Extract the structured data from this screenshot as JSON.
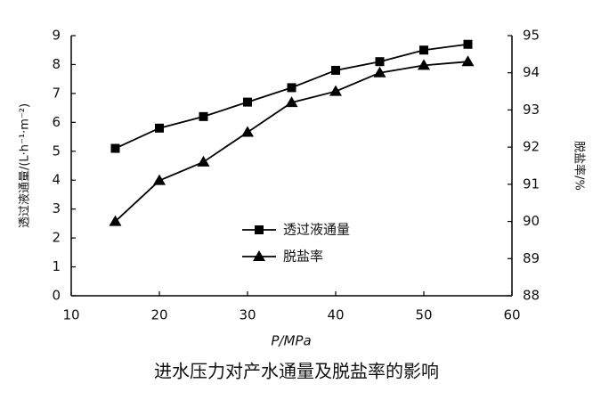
{
  "chart_data": {
    "type": "line",
    "title": "进水压力对产水通量及脱盐率的影响",
    "x_label": "P/MPa",
    "y_label": "透过液通量/(L·h⁻¹·m⁻²)",
    "y2_label": "脱盐率/%",
    "x": [
      15,
      20,
      25,
      30,
      35,
      40,
      45,
      50,
      55
    ],
    "series": [
      {
        "name": "透过液通量",
        "color": "#000000",
        "marker": "square",
        "values": [
          5.1,
          5.8,
          6.2,
          6.7,
          7.2,
          7.8,
          8.1,
          8.5,
          8.7
        ]
      },
      {
        "name": "脱盐率",
        "color": "#000000",
        "marker": "triangle",
        "axis": "y2",
        "values": [
          90.0,
          91.1,
          91.6,
          92.4,
          93.2,
          93.5,
          94.0,
          94.2,
          94.3
        ]
      }
    ],
    "xlim": [
      10,
      60
    ],
    "xticks": [
      10,
      20,
      30,
      40,
      50,
      60
    ],
    "ylim": [
      0,
      9
    ],
    "yticks": [
      0,
      1,
      2,
      3,
      4,
      5,
      6,
      7,
      8,
      9
    ],
    "y2lim": [
      88,
      95
    ],
    "y2ticks": [
      88,
      89,
      90,
      91,
      92,
      93,
      94,
      95
    ],
    "grid": false
  }
}
